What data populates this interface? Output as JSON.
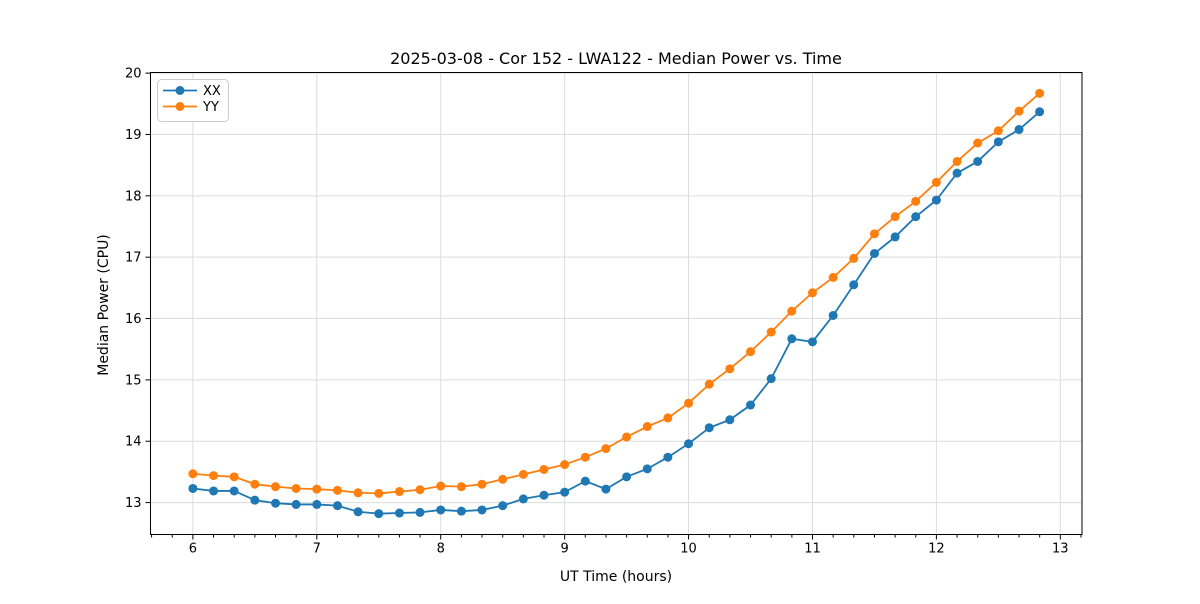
{
  "title": "2025-03-08 - Cor 152 - LWA122 - Median Power vs. Time",
  "colors": {
    "series_xx": "#1f77b4",
    "series_yy": "#ff7f0e",
    "grid": "#dcdcdc",
    "axis": "#000000",
    "legend_border": "#cccccc",
    "background": "#ffffff"
  },
  "chart_data": {
    "type": "line",
    "title": "2025-03-08 - Cor 152 - LWA122 - Median Power vs. Time",
    "xlabel": "UT Time (hours)",
    "ylabel": "Median Power (CPU)",
    "xlim": [
      5.658,
      13.175
    ],
    "ylim": [
      12.48,
      20.01
    ],
    "xticks": [
      6,
      7,
      8,
      9,
      10,
      11,
      12,
      13
    ],
    "yticks": [
      13,
      14,
      15,
      16,
      17,
      18,
      19,
      20
    ],
    "x_minor_tick_step": 0.16667,
    "grid": true,
    "legend_position": "upper-left",
    "marker": "circle",
    "x": [
      6.0,
      6.167,
      6.333,
      6.5,
      6.667,
      6.833,
      7.0,
      7.167,
      7.333,
      7.5,
      7.667,
      7.833,
      8.0,
      8.167,
      8.333,
      8.5,
      8.667,
      8.833,
      9.0,
      9.167,
      9.333,
      9.5,
      9.667,
      9.833,
      10.0,
      10.167,
      10.333,
      10.5,
      10.667,
      10.833,
      11.0,
      11.167,
      11.333,
      11.5,
      11.667,
      11.833,
      12.0,
      12.167,
      12.333,
      12.5,
      12.667,
      12.833
    ],
    "series": [
      {
        "name": "XX",
        "color": "#1f77b4",
        "values": [
          13.23,
          13.19,
          13.19,
          13.04,
          12.99,
          12.97,
          12.97,
          12.95,
          12.85,
          12.82,
          12.83,
          12.84,
          12.88,
          12.86,
          12.88,
          12.95,
          13.06,
          13.12,
          13.17,
          13.35,
          13.22,
          13.42,
          13.55,
          13.74,
          13.96,
          14.22,
          14.35,
          14.59,
          15.02,
          15.67,
          15.62,
          16.05,
          16.55,
          17.06,
          17.33,
          17.66,
          17.93,
          18.37,
          18.56,
          18.88,
          19.08,
          19.37
        ]
      },
      {
        "name": "YY",
        "color": "#ff7f0e",
        "values": [
          13.47,
          13.44,
          13.42,
          13.3,
          13.26,
          13.23,
          13.22,
          13.2,
          13.16,
          13.15,
          13.18,
          13.21,
          13.27,
          13.26,
          13.3,
          13.38,
          13.46,
          13.54,
          13.62,
          13.74,
          13.88,
          14.07,
          14.24,
          14.38,
          14.62,
          14.93,
          15.18,
          15.46,
          15.78,
          16.12,
          16.42,
          16.67,
          16.98,
          17.38,
          17.66,
          17.91,
          18.22,
          18.56,
          18.86,
          19.06,
          19.38,
          19.67
        ]
      }
    ]
  }
}
